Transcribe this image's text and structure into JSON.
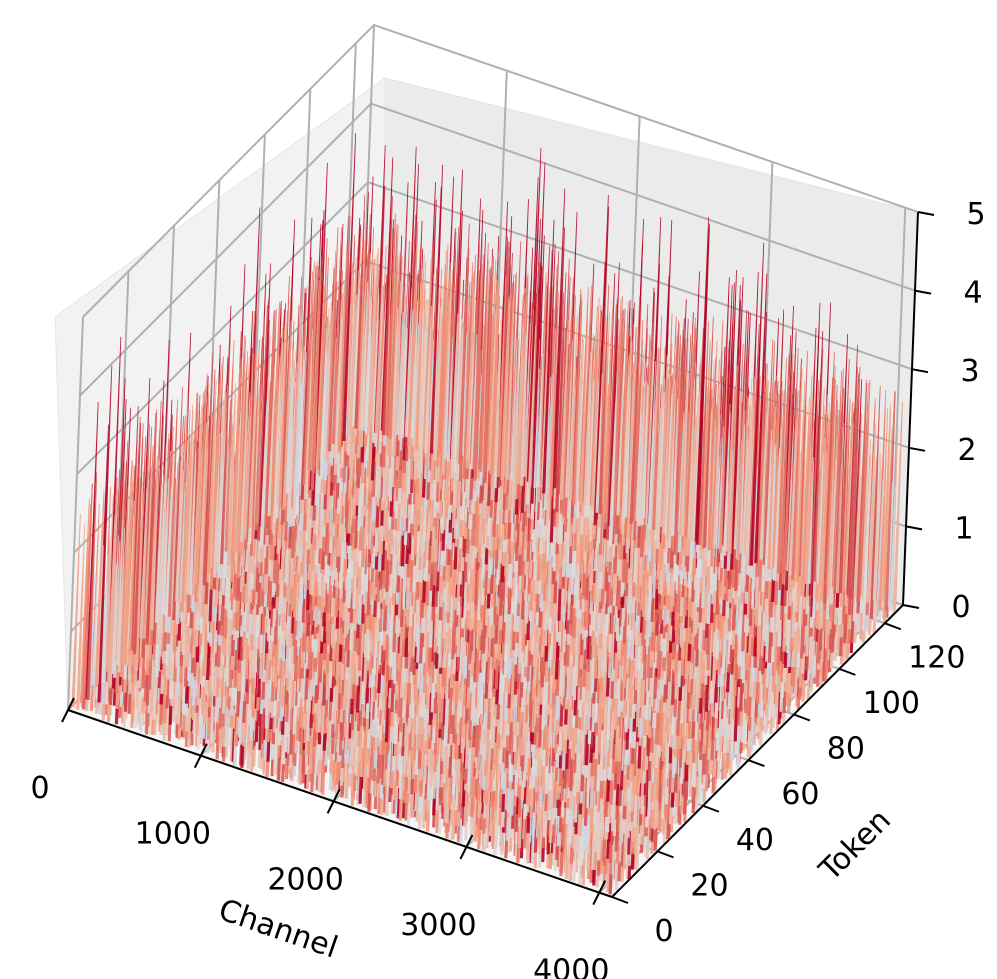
{
  "chart_data": {
    "type": "surface3d",
    "colormap": "coolwarm",
    "x_axis": {
      "label": "Channel",
      "range": [
        0,
        4096
      ],
      "ticks": [
        0,
        1000,
        2000,
        3000,
        4000
      ],
      "tick_labels": [
        "0",
        "1000",
        "2000",
        "3000",
        "4000"
      ]
    },
    "y_axis": {
      "label": "Token",
      "range": [
        0,
        128
      ],
      "ticks": [
        0,
        20,
        40,
        60,
        80,
        100,
        120
      ],
      "tick_labels": [
        "0",
        "20",
        "40",
        "60",
        "80",
        "100",
        "120"
      ]
    },
    "z_axis": {
      "label": "",
      "range": [
        0,
        5
      ],
      "ticks": [
        0,
        1,
        2,
        3,
        4,
        5
      ],
      "tick_labels": [
        "0",
        "1",
        "2",
        "3",
        "4",
        "5"
      ]
    },
    "grid": true,
    "surface_summary": {
      "typical_value": 2.2,
      "typical_range": [
        1.5,
        3.0
      ],
      "max_value": 5.0
    }
  }
}
